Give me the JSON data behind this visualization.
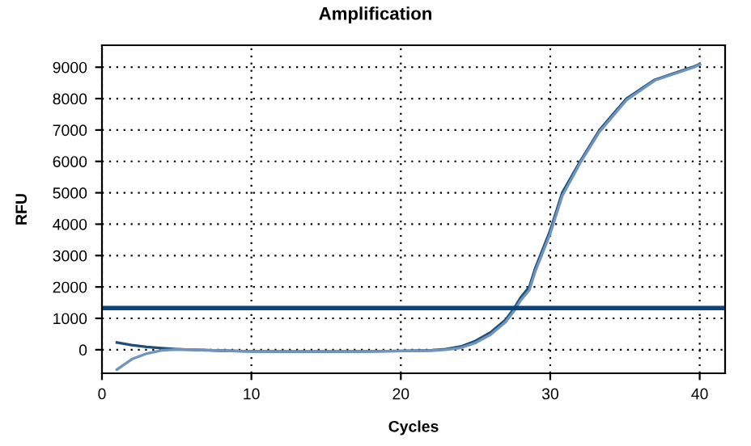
{
  "chart_data": {
    "type": "line",
    "title": "Amplification",
    "xlabel": "Cycles",
    "ylabel": "RFU",
    "xlim": [
      0,
      41.7
    ],
    "ylim": [
      -750,
      9700
    ],
    "xticks": [
      0,
      10,
      20,
      30,
      40
    ],
    "yticks": [
      0,
      1000,
      2000,
      3000,
      4000,
      5000,
      6000,
      7000,
      8000,
      9000
    ],
    "grid": true,
    "marker": "none",
    "line_style": "solid",
    "series": [
      {
        "color": "#1f4e79",
        "x": [
          1,
          2,
          3,
          4,
          5,
          6,
          8,
          10,
          14,
          18,
          20,
          22,
          23,
          24,
          25,
          26,
          27,
          27.6,
          28,
          28.6,
          29,
          30,
          30.8,
          32,
          33.3,
          35.1,
          37,
          39.5,
          40
        ],
        "values": [
          230,
          150,
          90,
          50,
          20,
          0,
          -30,
          -50,
          -60,
          -50,
          -40,
          -20,
          20,
          100,
          280,
          550,
          950,
          1330,
          1650,
          2000,
          2600,
          3800,
          5000,
          6000,
          7000,
          8000,
          8600,
          9000,
          9100
        ]
      },
      {
        "color": "#6f94bd",
        "x": [
          1,
          2,
          3,
          4,
          5,
          6,
          8,
          10,
          14,
          18,
          20,
          22,
          23,
          24,
          25,
          26,
          27,
          27.6,
          28,
          28.6,
          29,
          30,
          30.8,
          32,
          33.3,
          35.1,
          37,
          39.5,
          40
        ],
        "values": [
          -630,
          -300,
          -120,
          -20,
          10,
          0,
          -30,
          -50,
          -60,
          -50,
          -40,
          -30,
          0,
          60,
          220,
          480,
          880,
          1250,
          1560,
          1900,
          2500,
          3700,
          4900,
          5950,
          6950,
          7950,
          8580,
          8980,
          9080
        ]
      }
    ],
    "ref_lines": [
      {
        "axis": "y",
        "value": 1330,
        "color": "#08457e",
        "line_style": "solid"
      }
    ]
  }
}
